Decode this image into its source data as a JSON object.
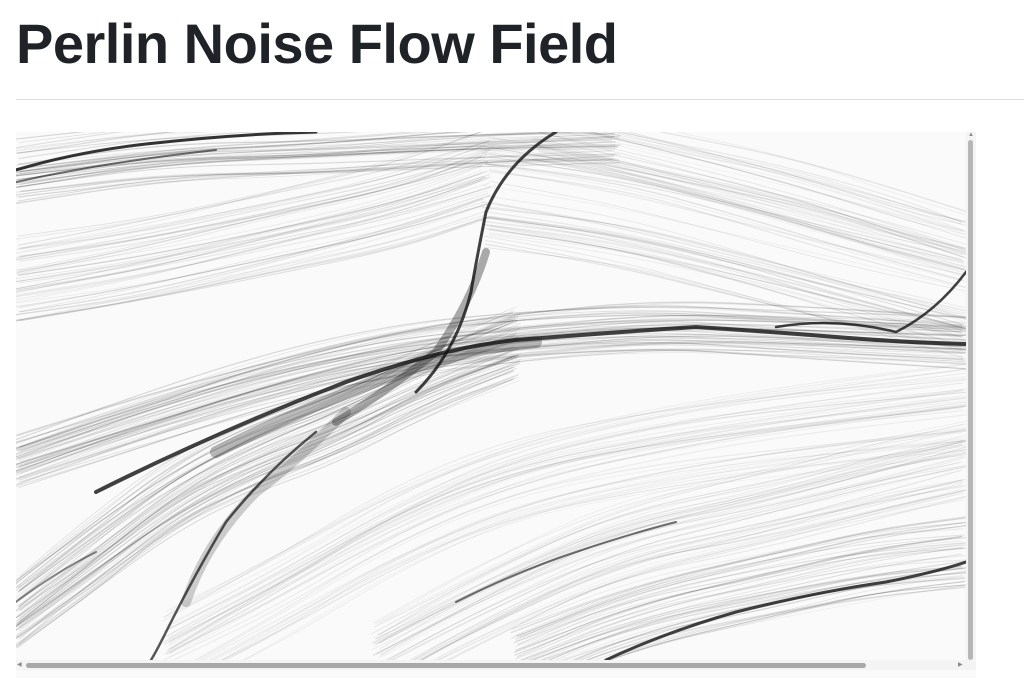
{
  "page": {
    "heading": "Perlin Noise Flow Field"
  },
  "canvas": {
    "background": "#fafafa",
    "ink": "#111111"
  },
  "icons": {
    "scroll_up": "scroll-up-arrow-icon",
    "scroll_down": "scroll-down-arrow-icon",
    "scroll_left": "scroll-left-arrow-icon",
    "scroll_right": "scroll-right-arrow-icon"
  }
}
